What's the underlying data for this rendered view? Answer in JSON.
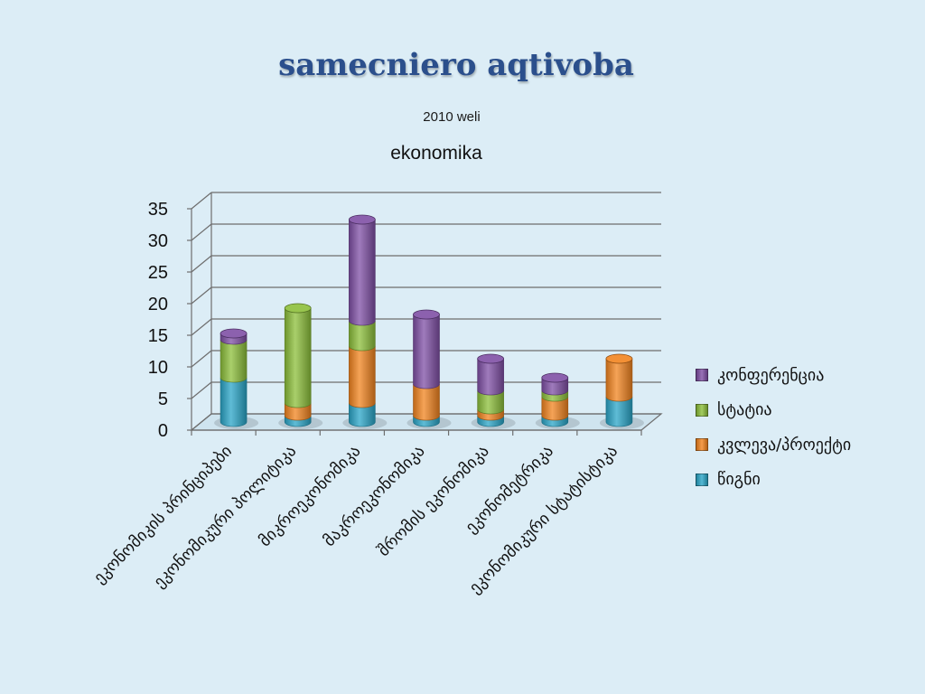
{
  "slide": {
    "title": "samecniero aqtivoba",
    "subtitle": "2010 weli"
  },
  "chart_data": {
    "type": "bar",
    "stacked": true,
    "three_d": true,
    "title": "ekonomika",
    "xlabel": "",
    "ylabel": "",
    "ylim": [
      0,
      35
    ],
    "yticks": [
      0,
      5,
      10,
      15,
      20,
      25,
      30,
      35
    ],
    "grid": true,
    "legend_position": "right",
    "categories": [
      "ეკონომიკის პრინციპები",
      "ეკონომიკური პოლიტიკა",
      "მიკროეკონომიკა",
      "მაკროეკონომიკა",
      "შრომის ეკონომიკა",
      "ეკონომეტრიკა",
      "ეკონომიკური სტატისტიკა"
    ],
    "series": [
      {
        "name": "წიგნი",
        "color": "#2aa6c8",
        "values": [
          7,
          1,
          3,
          1,
          1,
          1,
          4
        ]
      },
      {
        "name": "კვლევა/პროექტი",
        "color": "#f2841f",
        "values": [
          0,
          2,
          9,
          5,
          1,
          3,
          6
        ]
      },
      {
        "name": "სტატია",
        "color": "#8cbf3a",
        "values": [
          6,
          15,
          4,
          0,
          3,
          1,
          0
        ]
      },
      {
        "name": "კონფერენცია",
        "color": "#7f4fa5",
        "values": [
          1,
          0,
          16,
          11,
          5,
          2,
          0
        ]
      }
    ]
  }
}
